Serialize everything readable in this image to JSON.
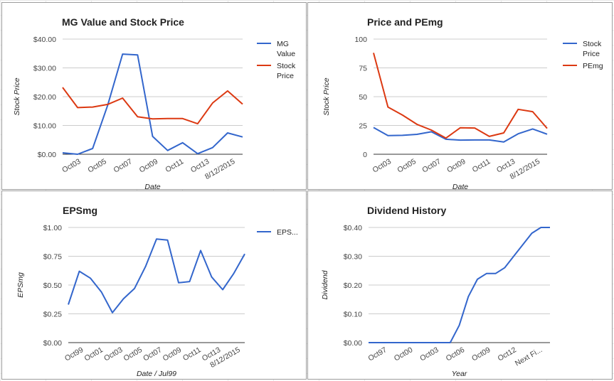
{
  "chart_data": [
    {
      "type": "line",
      "title": "MG Value and Stock Price",
      "xlabel": "Date",
      "ylabel": "Stock Price",
      "legend_position": "right",
      "ylim": [
        0,
        40
      ],
      "y_ticks": [
        "$0.00",
        "$10.00",
        "$20.00",
        "$30.00",
        "$40.00"
      ],
      "x_ticks": [
        "Oct03",
        "Oct05",
        "Oct07",
        "Oct09",
        "Oct11",
        "Oct13",
        "8/12/2015"
      ],
      "series": [
        {
          "name": "MG Value",
          "color": "#3366cc",
          "values": [
            0.5,
            0.0,
            2.0,
            17.0,
            34.8,
            34.5,
            6.2,
            1.3,
            4.0,
            0.2,
            2.3,
            7.4,
            6.0
          ]
        },
        {
          "name": "Stock Price",
          "color": "#dc3912",
          "values": [
            23.2,
            16.2,
            16.4,
            17.3,
            19.5,
            13.0,
            12.3,
            12.4,
            12.4,
            10.6,
            17.8,
            22.0,
            17.4
          ]
        }
      ]
    },
    {
      "type": "line",
      "title": "Price and PEmg",
      "xlabel": "Date",
      "ylabel": "Stock Price",
      "legend_position": "right",
      "ylim": [
        0,
        100
      ],
      "y_ticks": [
        "0",
        "25",
        "50",
        "75",
        "100"
      ],
      "x_ticks": [
        "Oct03",
        "Oct05",
        "Oct07",
        "Oct09",
        "Oct11",
        "Oct13",
        "8/12/2015"
      ],
      "series": [
        {
          "name": "Stock Price",
          "color": "#3366cc",
          "values": [
            23.2,
            16.2,
            16.4,
            17.3,
            19.5,
            13.0,
            12.3,
            12.4,
            12.4,
            10.6,
            17.8,
            22.0,
            17.4
          ]
        },
        {
          "name": "PEmg",
          "color": "#dc3912",
          "values": [
            88.0,
            41.0,
            34.0,
            26.0,
            21.0,
            14.0,
            23.0,
            22.8,
            15.5,
            18.5,
            39.0,
            37.0,
            22.5
          ]
        }
      ]
    },
    {
      "type": "line",
      "title": "EPSmg",
      "xlabel": "Date / Jul99",
      "ylabel": "EPSmg",
      "legend_position": "right",
      "ylim": [
        0,
        1
      ],
      "y_ticks": [
        "$0.00",
        "$0.25",
        "$0.50",
        "$0.75",
        "$1.00"
      ],
      "x_ticks": [
        "Oct99",
        "Oct01",
        "Oct03",
        "Oct05",
        "Oct07",
        "Oct09",
        "Oct11",
        "Oct13",
        "8/12/2015"
      ],
      "series": [
        {
          "name": "EPS...",
          "color": "#3366cc",
          "values": [
            0.33,
            0.62,
            0.56,
            0.44,
            0.26,
            0.38,
            0.47,
            0.66,
            0.9,
            0.89,
            0.52,
            0.53,
            0.8,
            0.57,
            0.46,
            0.6,
            0.77
          ]
        }
      ]
    },
    {
      "type": "line",
      "title": "Dividend History",
      "xlabel": "Year",
      "ylabel": "Dividend",
      "ylim": [
        0,
        0.4
      ],
      "y_ticks": [
        "$0.00",
        "$0.10",
        "$0.20",
        "$0.30",
        "$0.40"
      ],
      "x_ticks": [
        "Oct97",
        "Oct00",
        "Oct03",
        "Oct06",
        "Oct09",
        "Oct12",
        "Next Fi..."
      ],
      "series": [
        {
          "name": "",
          "color": "#3366cc",
          "values": [
            0,
            0,
            0,
            0,
            0,
            0,
            0,
            0,
            0,
            0,
            0.06,
            0.16,
            0.22,
            0.24,
            0.24,
            0.26,
            0.3,
            0.34,
            0.38,
            0.4,
            0.4
          ]
        }
      ]
    }
  ]
}
